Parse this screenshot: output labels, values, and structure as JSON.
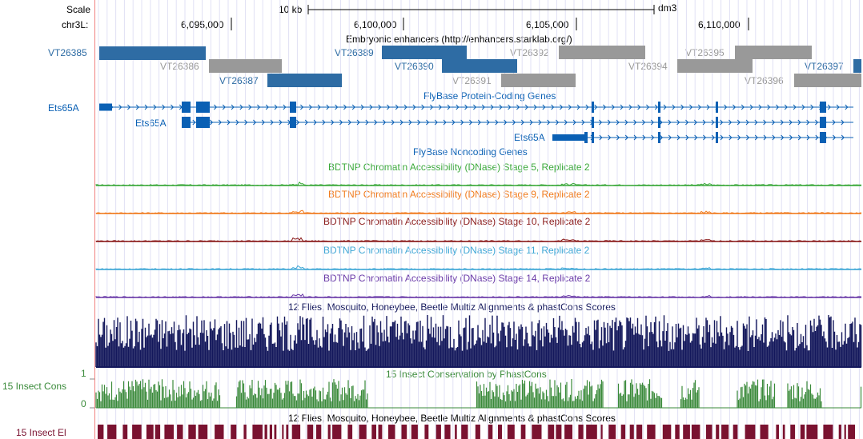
{
  "ruler": {
    "scale_label": "Scale",
    "scale_value": "10 kb",
    "assembly": "dm3",
    "chrom_label": "chr3L:",
    "ticks": [
      "6,095,000",
      "6,100,000",
      "6,105,000",
      "6,110,000"
    ]
  },
  "tracks": {
    "enhancers": {
      "title": "Embryonic enhancers (http://enhancers.starklab.org/)",
      "items": [
        {
          "name": "VT26385",
          "color": "#2e6ca4"
        },
        {
          "name": "VT26386",
          "color": "#999999"
        },
        {
          "name": "VT26387",
          "color": "#2e6ca4"
        },
        {
          "name": "VT26389",
          "color": "#2e6ca4"
        },
        {
          "name": "VT26390",
          "color": "#2e6ca4"
        },
        {
          "name": "VT26391",
          "color": "#999999"
        },
        {
          "name": "VT26392",
          "color": "#999999"
        },
        {
          "name": "VT26394",
          "color": "#999999"
        },
        {
          "name": "VT26395",
          "color": "#999999"
        },
        {
          "name": "VT26396",
          "color": "#999999"
        },
        {
          "name": "VT26397",
          "color": "#2e6ca4"
        }
      ]
    },
    "flybase_coding": {
      "title": "FlyBase Protein-Coding Genes",
      "genes": [
        "Ets65A",
        "Ets65A",
        "Ets65A"
      ],
      "color": "#0a60b4"
    },
    "flybase_noncoding": {
      "title": "FlyBase Noncoding Genes",
      "color": "#0a60b4"
    },
    "dnase": [
      {
        "title": "BDTNP Chromatin Accessibility (DNase) Stage 5, Replicate 2",
        "color": "#3aa83a"
      },
      {
        "title": "BDTNP Chromatin Accessibility (DNase) Stage 9, Replicate 2",
        "color": "#f07b1e"
      },
      {
        "title": "BDTNP Chromatin Accessibility (DNase) Stage 10, Replicate 2",
        "color": "#8a1a1a"
      },
      {
        "title": "BDTNP Chromatin Accessibility (DNase) Stage 11, Replicate 2",
        "color": "#3fa7d6"
      },
      {
        "title": "BDTNP Chromatin Accessibility (DNase) Stage 14, Replicate 2",
        "color": "#6a3aa8"
      }
    ],
    "multiz": {
      "title": "12 Flies, Mosquito, Honeybee, Beetle Multiz Alignments & phastCons Scores",
      "color": "#14185c"
    },
    "insect_cons": {
      "title": "15 Insect Conservation by PhastCons",
      "left_label": "15 Insect Cons",
      "axis_max": "1",
      "axis_min": "0",
      "color": "#3a8a3a"
    },
    "insect_el": {
      "title": "12 Flies, Mosquito, Honeybee, Beetle Multiz Alignments & phastCons Scores",
      "left_label": "15 Insect El",
      "color": "#7a1230"
    }
  }
}
